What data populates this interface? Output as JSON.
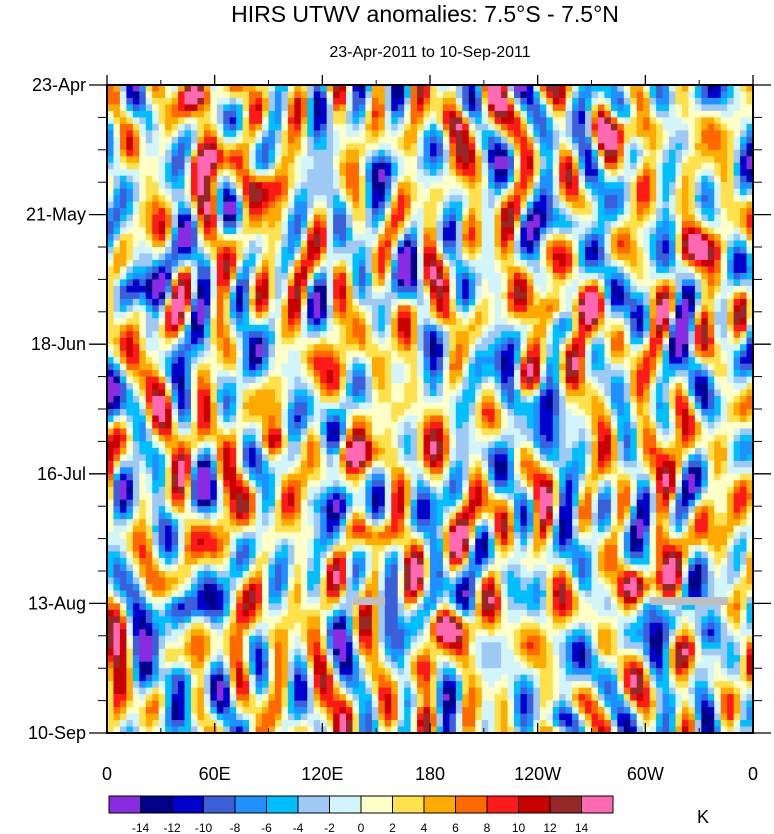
{
  "chart_data": {
    "type": "heatmap",
    "title": "HIRS UTWV anomalies: 7.5°S - 7.5°N",
    "subtitle": "23-Apr-2011 to 10-Sep-2011",
    "x_ticks": [
      {
        "lon": 0,
        "label": "0"
      },
      {
        "lon": 60,
        "label": "60E"
      },
      {
        "lon": 120,
        "label": "120E"
      },
      {
        "lon": 180,
        "label": "180"
      },
      {
        "lon": 240,
        "label": "120W"
      },
      {
        "lon": 300,
        "label": "60W"
      },
      {
        "lon": 360,
        "label": "0"
      }
    ],
    "xlim": [
      0,
      360
    ],
    "y_ticks": [
      {
        "day": 0,
        "label": "23-Apr"
      },
      {
        "day": 28,
        "label": "21-May"
      },
      {
        "day": 56,
        "label": "18-Jun"
      },
      {
        "day": 84,
        "label": "16-Jul"
      },
      {
        "day": 112,
        "label": "13-Aug"
      },
      {
        "day": 140,
        "label": "10-Sep"
      }
    ],
    "ylim": [
      0,
      140
    ],
    "colorbar": {
      "unit": "K",
      "levels": [
        -14,
        -12,
        -10,
        -8,
        -6,
        -4,
        -2,
        0,
        2,
        4,
        6,
        8,
        10,
        12,
        14
      ],
      "colors": [
        "#8a2be2",
        "#00008b",
        "#0000cd",
        "#3a5fd9",
        "#1e90ff",
        "#00bfff",
        "#9ec9f5",
        "#d2f5fb",
        "#ffffc8",
        "#ffe14d",
        "#ffaa00",
        "#ff6a00",
        "#ff1a1a",
        "#c80000",
        "#962828",
        "#ff69b4"
      ]
    },
    "missing_segments": [
      {
        "lon_start": 137,
        "lon_end": 155,
        "day": 111.5
      },
      {
        "lon_start": 303,
        "lon_end": 346,
        "day": 111.5
      }
    ],
    "missing_color": "#bebebe",
    "features": [
      {
        "lon": 55,
        "day": 2,
        "value": 11
      },
      {
        "lon": 58,
        "day": 16,
        "value": 9
      },
      {
        "lon": 85,
        "day": 22,
        "value": 10
      },
      {
        "lon": 198,
        "day": 8,
        "value": 8
      },
      {
        "lon": 288,
        "day": 10,
        "value": 11
      },
      {
        "lon": 255,
        "day": 48,
        "value": 13
      },
      {
        "lon": 185,
        "day": 50,
        "value": 8
      },
      {
        "lon": 330,
        "day": 35,
        "value": 9
      },
      {
        "lon": 140,
        "day": 80,
        "value": 11
      },
      {
        "lon": 95,
        "day": 77,
        "value": 9
      },
      {
        "lon": 150,
        "day": 97,
        "value": 10
      },
      {
        "lon": 190,
        "day": 117,
        "value": 12
      },
      {
        "lon": 300,
        "day": 108,
        "value": 11
      },
      {
        "lon": 175,
        "day": 137,
        "value": 9
      },
      {
        "lon": 35,
        "day": 128,
        "value": -9
      },
      {
        "lon": 40,
        "day": 113,
        "value": -10
      },
      {
        "lon": 255,
        "day": 137,
        "value": -12
      },
      {
        "lon": 330,
        "day": 118,
        "value": -9
      },
      {
        "lon": 130,
        "day": 90,
        "value": -8
      },
      {
        "lon": 235,
        "day": 68,
        "value": -8
      },
      {
        "lon": 250,
        "day": 30,
        "value": -7
      },
      {
        "lon": 20,
        "day": 44,
        "value": -9
      },
      {
        "lon": 160,
        "day": 18,
        "value": -6
      },
      {
        "lon": 330,
        "day": 2,
        "value": -8
      }
    ]
  }
}
